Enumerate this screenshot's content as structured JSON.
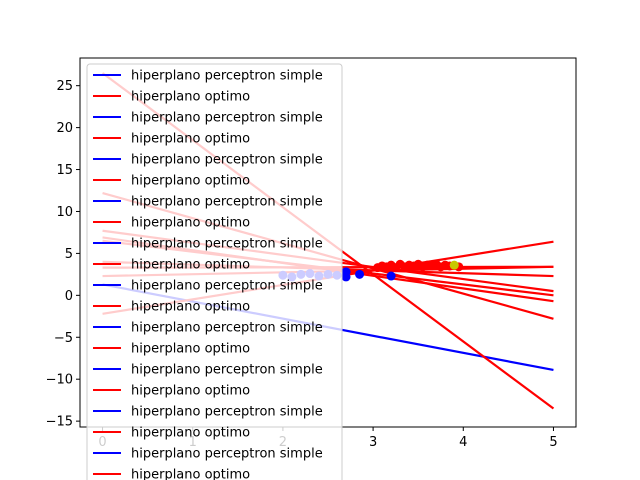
{
  "chart_data": {
    "type": "line",
    "title": "",
    "xlabel": "",
    "ylabel": "",
    "xlim": [
      -0.25,
      5.25
    ],
    "ylim": [
      -15.7,
      28.3
    ],
    "xticks": [
      0,
      1,
      2,
      3,
      4,
      5
    ],
    "yticks": [
      -15,
      -10,
      -5,
      0,
      5,
      10,
      15,
      20,
      25
    ],
    "grid": false,
    "legend_position": "upper-left",
    "legend": [
      {
        "label": "hiperplano perceptron simple",
        "color": "#0000ff"
      },
      {
        "label": "hiperplano optimo",
        "color": "#ff0000"
      },
      {
        "label": "hiperplano perceptron simple",
        "color": "#0000ff"
      },
      {
        "label": "hiperplano optimo",
        "color": "#ff0000"
      },
      {
        "label": "hiperplano perceptron simple",
        "color": "#0000ff"
      },
      {
        "label": "hiperplano optimo",
        "color": "#ff0000"
      },
      {
        "label": "hiperplano perceptron simple",
        "color": "#0000ff"
      },
      {
        "label": "hiperplano optimo",
        "color": "#ff0000"
      },
      {
        "label": "hiperplano perceptron simple",
        "color": "#0000ff"
      },
      {
        "label": "hiperplano optimo",
        "color": "#ff0000"
      },
      {
        "label": "hiperplano perceptron simple",
        "color": "#0000ff"
      },
      {
        "label": "hiperplano optimo",
        "color": "#ff0000"
      },
      {
        "label": "hiperplano perceptron simple",
        "color": "#0000ff"
      },
      {
        "label": "hiperplano optimo",
        "color": "#ff0000"
      },
      {
        "label": "hiperplano perceptron simple",
        "color": "#0000ff"
      },
      {
        "label": "hiperplano optimo",
        "color": "#ff0000"
      },
      {
        "label": "hiperplano perceptron simple",
        "color": "#0000ff"
      },
      {
        "label": "hiperplano optimo",
        "color": "#ff0000"
      },
      {
        "label": "hiperplano perceptron simple",
        "color": "#0000ff"
      },
      {
        "label": "hiperplano optimo",
        "color": "#ff0000"
      }
    ],
    "series": [
      {
        "name": "hiperplano perceptron simple",
        "color": "#0000ff",
        "x": [
          0,
          5
        ],
        "y": [
          1.3,
          -8.9
        ]
      },
      {
        "name": "hiperplano optimo",
        "color": "#ff0000",
        "x": [
          0,
          5
        ],
        "y": [
          26.5,
          -13.5
        ]
      },
      {
        "name": "hiperplano optimo",
        "color": "#ff0000",
        "x": [
          0,
          5
        ],
        "y": [
          12.2,
          -2.8
        ]
      },
      {
        "name": "hiperplano optimo",
        "color": "#ff0000",
        "x": [
          0,
          5
        ],
        "y": [
          7.7,
          0.5
        ]
      },
      {
        "name": "hiperplano optimo",
        "color": "#ff0000",
        "x": [
          0,
          5
        ],
        "y": [
          6.9,
          -0.7
        ]
      },
      {
        "name": "hiperplano optimo",
        "color": "#ff0000",
        "x": [
          0,
          5
        ],
        "y": [
          6.5,
          0.0
        ]
      },
      {
        "name": "hiperplano optimo",
        "color": "#ff0000",
        "x": [
          0,
          5
        ],
        "y": [
          4.0,
          2.3
        ]
      },
      {
        "name": "hiperplano optimo",
        "color": "#ff0000",
        "x": [
          0,
          5
        ],
        "y": [
          3.3,
          3.4
        ]
      },
      {
        "name": "hiperplano optimo",
        "color": "#ff0000",
        "x": [
          0,
          5
        ],
        "y": [
          2.3,
          3.4
        ]
      },
      {
        "name": "hiperplano optimo",
        "color": "#ff0000",
        "x": [
          0,
          5
        ],
        "y": [
          -2.2,
          6.4
        ]
      }
    ],
    "scatter": [
      {
        "color": "#0000ff",
        "points": [
          [
            2.0,
            2.4
          ],
          [
            2.1,
            2.2
          ],
          [
            2.2,
            2.5
          ],
          [
            2.3,
            2.6
          ],
          [
            2.4,
            2.3
          ],
          [
            2.5,
            2.5
          ],
          [
            2.6,
            2.4
          ],
          [
            2.7,
            2.2
          ],
          [
            2.7,
            2.8
          ],
          [
            2.85,
            2.5
          ],
          [
            3.2,
            2.3
          ]
        ]
      },
      {
        "color": "#ff0000",
        "points": [
          [
            3.05,
            3.3
          ],
          [
            3.1,
            3.5
          ],
          [
            3.15,
            3.4
          ],
          [
            3.2,
            3.6
          ],
          [
            3.25,
            3.3
          ],
          [
            3.3,
            3.7
          ],
          [
            3.35,
            3.4
          ],
          [
            3.4,
            3.6
          ],
          [
            3.45,
            3.5
          ],
          [
            3.5,
            3.7
          ],
          [
            3.55,
            3.4
          ],
          [
            3.6,
            3.6
          ],
          [
            3.65,
            3.5
          ],
          [
            3.7,
            3.7
          ],
          [
            3.75,
            3.4
          ],
          [
            3.8,
            3.6
          ],
          [
            3.85,
            3.5
          ],
          [
            3.95,
            3.4
          ]
        ]
      },
      {
        "color": "#c8c800",
        "points": [
          [
            3.9,
            3.6
          ]
        ]
      }
    ]
  }
}
